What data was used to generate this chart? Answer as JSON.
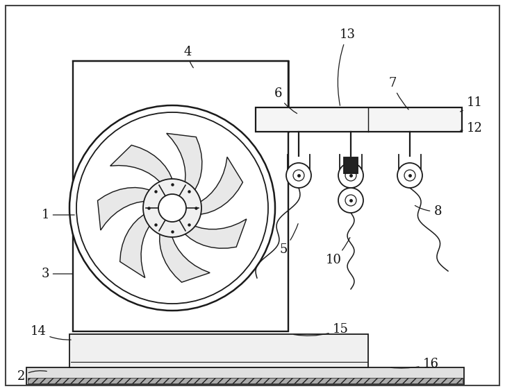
{
  "bg_color": "#ffffff",
  "line_color": "#1a1a1a",
  "dot_color": "#c8c8c8",
  "label_color": "#111111",
  "fig_width": 7.27,
  "fig_height": 5.64
}
